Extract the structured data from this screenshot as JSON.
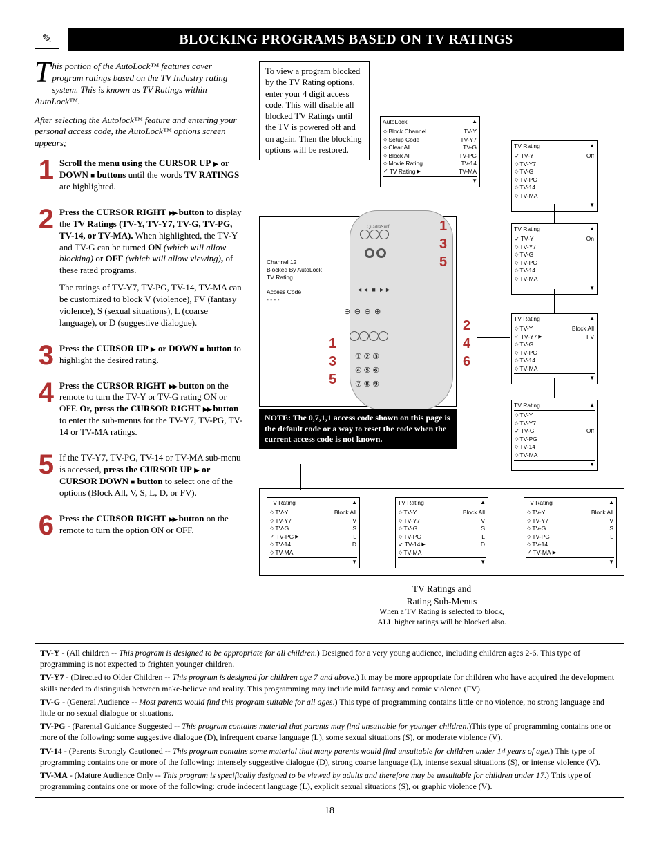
{
  "title": "BLOCKING PROGRAMS BASED ON TV RATINGS",
  "intro_first_char": "T",
  "intro_rest": "his portion of the AutoLock™ features cover program ratings based on the TV Industry rating system. This is known as TV Ratings within AutoLock™.",
  "intro2": "After selecting the Autolock™ feature and entering your personal access code, the AutoLock™ options screen appears;",
  "steps": [
    {
      "num": "1",
      "html": "<span class='b'>Scroll the menu using the CURSOR UP</span> <span class='tri-r'></span> <span class='b'>or DOWN</span> <span class='sq'></span> <span class='b'>buttons</span> until the words <span class='b'>TV RATINGS</span> are highlighted."
    },
    {
      "num": "2",
      "html": "<span class='b'>Press the CURSOR RIGHT</span> <span class='tri-rr'></span> <span class='b'>button</span> to display the <span class='b'>TV Ratings (TV-Y, TV-Y7, TV-G, TV-PG, TV-14, or TV-MA).</span> When highlighted, the TV-Y and TV-G can be turned <span class='b'>ON</span> <span class='i'>(which will allow blocking)</span> or <span class='b'>OFF</span> <span class='i'>(which will allow viewing)</span><span class='b'>,</span> of these rated programs.",
      "extra": "The ratings of TV-Y7, TV-PG, TV-14, TV-MA can be customized to block V (violence), FV (fantasy violence), S (sexual situations), L (coarse language), or D (suggestive dialogue)."
    },
    {
      "num": "3",
      "html": "<span class='b'>Press the CURSOR UP</span> <span class='tri-r'></span> <span class='b'>or DOWN</span> <span class='sq'></span> <span class='b'>button</span> to highlight the desired rating."
    },
    {
      "num": "4",
      "html": "<span class='b'>Press the CURSOR RIGHT</span> <span class='tri-rr'></span> <span class='b'>button</span> on the remote to turn the TV-Y or TV-G rating ON or OFF. <span class='b'>Or, press the CURSOR RIGHT</span> <span class='tri-rr'></span> <span class='b'>button</span> to enter the sub-menus for the TV-Y7, TV-PG, TV-14 or TV-MA ratings."
    },
    {
      "num": "5",
      "html": "If the TV-Y7, TV-PG, TV-14 or TV-MA sub-menu is accessed, <span class='b'>press the CURSOR UP</span> <span class='tri-r'></span> <span class='b'>or CURSOR DOWN</span> <span class='sq'></span> <span class='b'>button</span> to select one of the options (Block All, V, S, L, D, or FV)."
    },
    {
      "num": "6",
      "html": "<span class='b'>Press the CURSOR RIGHT</span> <span class='tri-rr'></span> <span class='b'>button</span> on the remote to turn the option ON or OFF."
    }
  ],
  "info_box": "To view a program blocked by the TV Rating options, enter your 4 digit access code. This will disable all blocked TV Ratings until the TV is powered off and on again. Then the blocking options will be restored.",
  "note_box": "NOTE: The 0,7,1,1 access code shown on this page is the default code or a way to reset the code when the current access code is not known.",
  "autolock_menu": {
    "title": "AutoLock",
    "items": [
      {
        "l": "Block Channel",
        "r": "TV-Y"
      },
      {
        "l": "Setup Code",
        "r": "TV-Y7"
      },
      {
        "l": "Clear All",
        "r": "TV-G"
      },
      {
        "l": "Block All",
        "r": "TV-PG"
      },
      {
        "l": "Movie Rating",
        "r": "TV-14"
      },
      {
        "l": "TV Rating",
        "r": "TV-MA",
        "sel": true,
        "arrow": true
      }
    ]
  },
  "osd": {
    "l1": "Channel 12",
    "l2": "Blocked By AutoLock",
    "l3": "TV Rating",
    "l4": "Access Code",
    "l5": "- - - -"
  },
  "panels_right": [
    {
      "title": "TV Rating",
      "rtext": "Off",
      "items": [
        "TV-Y",
        "TV-Y7",
        "TV-G",
        "TV-PG",
        "TV-14",
        "TV-MA"
      ],
      "sel": 0
    },
    {
      "title": "TV Rating",
      "rtext": "On",
      "items": [
        "TV-Y",
        "TV-Y7",
        "TV-G",
        "TV-PG",
        "TV-14",
        "TV-MA"
      ],
      "sel": 0
    },
    {
      "title": "TV Rating",
      "rtext": "",
      "r_items": [
        "Block All",
        "FV"
      ],
      "items": [
        "TV-Y",
        "TV-Y7",
        "TV-G",
        "TV-PG",
        "TV-14",
        "TV-MA"
      ],
      "sel": 1,
      "arrow": true
    },
    {
      "title": "TV Rating",
      "rtext": "Off",
      "items": [
        "TV-Y",
        "TV-Y7",
        "TV-G",
        "TV-PG",
        "TV-14",
        "TV-MA"
      ],
      "sel": 2
    }
  ],
  "side_nums_left": [
    "1",
    "3",
    "5"
  ],
  "side_nums_right_a": [
    "1",
    "3",
    "5"
  ],
  "side_nums_right_b": [
    "2",
    "4",
    "6"
  ],
  "submenus": [
    {
      "title": "TV Rating",
      "r": [
        "Block All",
        "V",
        "S",
        "L",
        "D"
      ],
      "items": [
        "TV-Y",
        "TV-Y7",
        "TV-G",
        "TV-PG",
        "TV-14",
        "TV-MA"
      ],
      "sel": 3,
      "arrow": true
    },
    {
      "title": "TV Rating",
      "r": [
        "Block All",
        "V",
        "S",
        "L",
        "D"
      ],
      "items": [
        "TV-Y",
        "TV-Y7",
        "TV-G",
        "TV-PG",
        "TV-14",
        "TV-MA"
      ],
      "sel": 4,
      "arrow": true
    },
    {
      "title": "TV Rating",
      "r": [
        "Block All",
        "V",
        "S",
        "L"
      ],
      "items": [
        "TV-Y",
        "TV-Y7",
        "TV-G",
        "TV-PG",
        "TV-14",
        "TV-MA"
      ],
      "sel": 5,
      "arrow": true
    }
  ],
  "subcaption_title": "TV Ratings and",
  "subcaption_title2": "Rating Sub-Menus",
  "subcaption_sm1": "When a TV Rating is selected to block,",
  "subcaption_sm2": "ALL higher ratings will be blocked also.",
  "defs": [
    {
      "k": "TV-Y",
      "t": " - (All children -- ",
      "i": "This program is designed to be appropriate for all children",
      "r": ".) Designed for a very young audience, including children ages 2-6. This type of programming is not expected to frighten younger children."
    },
    {
      "k": "TV-Y7",
      "t": " - (Directed to Older Children -- ",
      "i": "This program is designed for children age 7 and above",
      "r": ".) It may be more appropriate for children who have acquired the development skills needed to distinguish between make-believe and reality. This programming may include mild fantasy and comic violence (FV)."
    },
    {
      "k": "TV-G",
      "t": " - (General Audience -- ",
      "i": "Most parents would find this program suitable for all ages",
      "r": ".) This type of programming contains little or no violence, no strong language and little or no sexual dialogue or situations."
    },
    {
      "k": "TV-PG",
      "t": " - (Parental Guidance Suggested -- ",
      "i": "This program contains material that parents may find unsuitable for younger children",
      "r": ".)This type of programming contains one or more of the following: some suggestive dialogue (D), infrequent coarse language (L), some sexual situations (S), or moderate violence (V)."
    },
    {
      "k": "TV-14",
      "t": " - (Parents Strongly Cautioned -- ",
      "i": "This program contains some material that many parents would find unsuitable for children under 14 years of age",
      "r": ".) This type of programming contains one or more of the following: intensely suggestive dialogue (D), strong coarse language (L), intense sexual situations (S), or intense violence (V)."
    },
    {
      "k": "TV-MA",
      "t": " - (Mature Audience Only -- ",
      "i": "This program is specifically designed to be viewed by adults and therefore may be unsuitable for children under 17",
      "r": ".) This type of programming contains one or more of the following: crude indecent language (L), explicit sexual situations (S), or graphic violence (V)."
    }
  ],
  "page_num": "18"
}
